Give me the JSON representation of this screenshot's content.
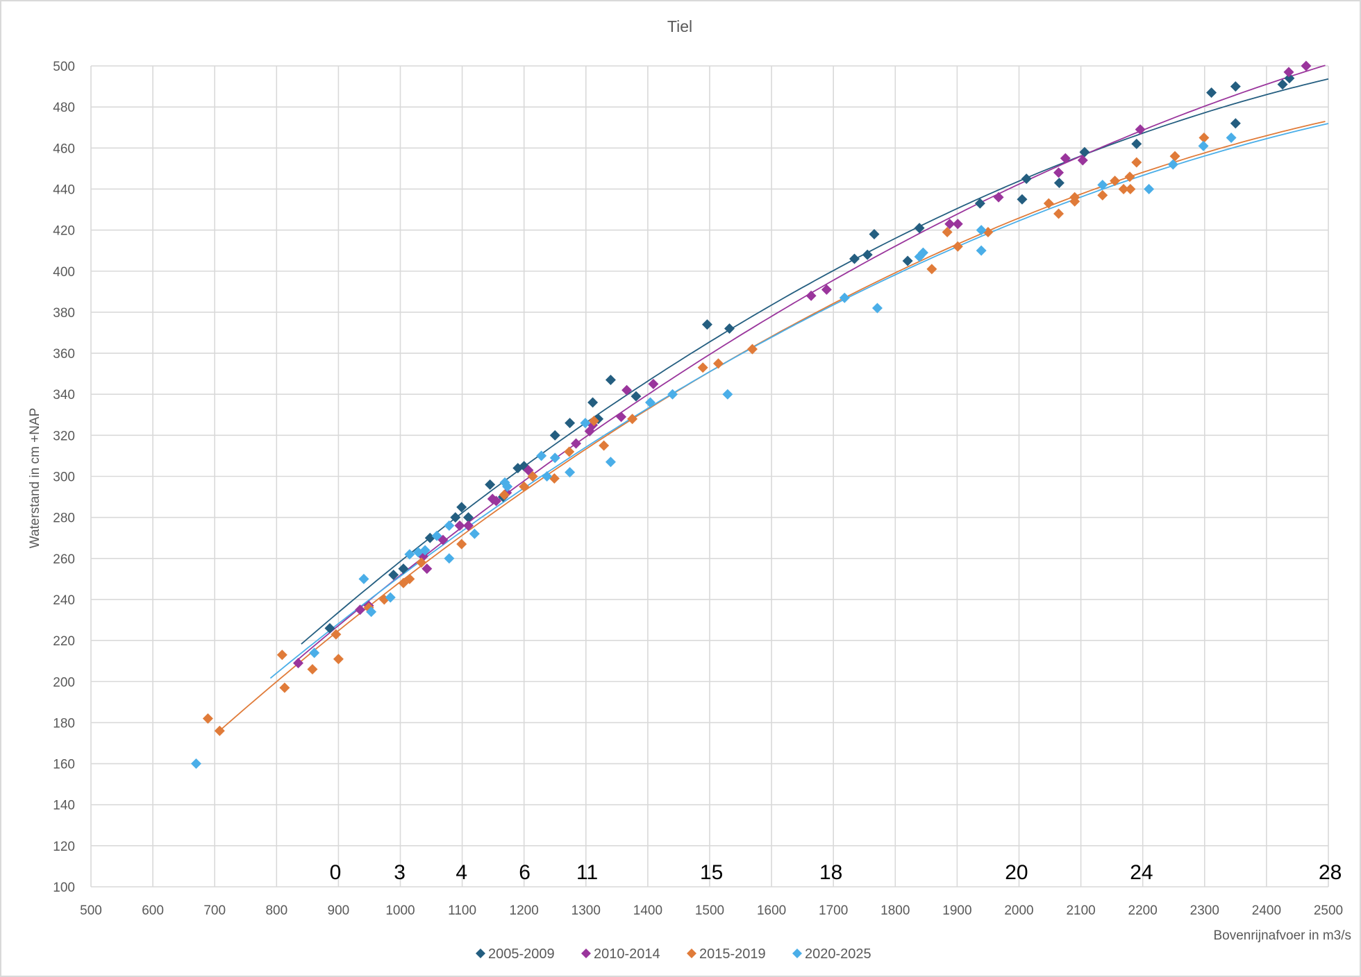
{
  "chart_data": {
    "type": "scatter",
    "title": "Tiel",
    "xlabel": "Bovenrijnafvoer in m3/s",
    "ylabel": "Waterstand in cm +NAP",
    "xlim": [
      500,
      2500
    ],
    "ylim": [
      100,
      500
    ],
    "xticks": [
      500,
      600,
      700,
      800,
      900,
      1000,
      1100,
      1200,
      1300,
      1400,
      1500,
      1600,
      1700,
      1800,
      1900,
      2000,
      2100,
      2200,
      2300,
      2400,
      2500
    ],
    "yticks": [
      100,
      120,
      140,
      160,
      180,
      200,
      220,
      240,
      260,
      280,
      300,
      320,
      340,
      360,
      380,
      400,
      420,
      440,
      460,
      480,
      500
    ],
    "grid": true,
    "legend": "bottom",
    "marker": "diamond",
    "trendline": "polynomial",
    "annotations": [
      {
        "text": "0",
        "x": 895,
        "y": 104
      },
      {
        "text": "3",
        "x": 999,
        "y": 104
      },
      {
        "text": "4",
        "x": 1099,
        "y": 104
      },
      {
        "text": "6",
        "x": 1201,
        "y": 104
      },
      {
        "text": "11",
        "x": 1302,
        "y": 104
      },
      {
        "text": "15",
        "x": 1503,
        "y": 104
      },
      {
        "text": "18",
        "x": 1696,
        "y": 104
      },
      {
        "text": "20",
        "x": 1996,
        "y": 104
      },
      {
        "text": "24",
        "x": 2198,
        "y": 104
      },
      {
        "text": "28",
        "x": 2503,
        "y": 104
      }
    ],
    "series": [
      {
        "name": "2005-2009",
        "color": "#245e80",
        "trend_range": [
          840,
          2500
        ],
        "points": [
          [
            886,
            226
          ],
          [
            989,
            252
          ],
          [
            1005,
            255
          ],
          [
            1048,
            270
          ],
          [
            1089,
            280
          ],
          [
            1099,
            285
          ],
          [
            1110,
            280
          ],
          [
            1145,
            296
          ],
          [
            1166,
            290
          ],
          [
            1190,
            304
          ],
          [
            1200,
            305
          ],
          [
            1250,
            320
          ],
          [
            1274,
            326
          ],
          [
            1311,
            336
          ],
          [
            1320,
            328
          ],
          [
            1340,
            347
          ],
          [
            1381,
            339
          ],
          [
            1496,
            374
          ],
          [
            1532,
            372
          ],
          [
            1734,
            406
          ],
          [
            1755,
            408
          ],
          [
            1766,
            418
          ],
          [
            1820,
            405
          ],
          [
            1839,
            421
          ],
          [
            1937,
            433
          ],
          [
            2005,
            435
          ],
          [
            2012,
            445
          ],
          [
            2065,
            443
          ],
          [
            2106,
            458
          ],
          [
            2190,
            462
          ],
          [
            2311,
            487
          ],
          [
            2350,
            490
          ],
          [
            2350,
            472
          ],
          [
            2426,
            491
          ],
          [
            2437,
            494
          ]
        ]
      },
      {
        "name": "2010-2014",
        "color": "#9a359c",
        "trend_range": [
          835,
          2500
        ],
        "points": [
          [
            835,
            209
          ],
          [
            935,
            235
          ],
          [
            949,
            237
          ],
          [
            1037,
            261
          ],
          [
            1043,
            255
          ],
          [
            1069,
            269
          ],
          [
            1096,
            276
          ],
          [
            1110,
            276
          ],
          [
            1149,
            289
          ],
          [
            1155,
            288
          ],
          [
            1172,
            292
          ],
          [
            1207,
            303
          ],
          [
            1284,
            316
          ],
          [
            1306,
            322
          ],
          [
            1311,
            325
          ],
          [
            1357,
            329
          ],
          [
            1366,
            342
          ],
          [
            1409,
            345
          ],
          [
            1664,
            388
          ],
          [
            1689,
            391
          ],
          [
            1888,
            423
          ],
          [
            1901,
            423
          ],
          [
            1967,
            436
          ],
          [
            2064,
            448
          ],
          [
            2075,
            455
          ],
          [
            2103,
            454
          ],
          [
            2196,
            469
          ],
          [
            2436,
            497
          ],
          [
            2464,
            500
          ]
        ]
      },
      {
        "name": "2015-2019",
        "color": "#e07b39",
        "trend_range": [
          705,
          2500
        ],
        "points": [
          [
            689,
            182
          ],
          [
            708,
            176
          ],
          [
            809,
            213
          ],
          [
            813,
            197
          ],
          [
            858,
            206
          ],
          [
            896,
            223
          ],
          [
            900,
            211
          ],
          [
            949,
            236
          ],
          [
            974,
            240
          ],
          [
            1005,
            248
          ],
          [
            1015,
            250
          ],
          [
            1034,
            258
          ],
          [
            1099,
            267
          ],
          [
            1168,
            291
          ],
          [
            1200,
            295
          ],
          [
            1214,
            300
          ],
          [
            1249,
            299
          ],
          [
            1273,
            312
          ],
          [
            1313,
            327
          ],
          [
            1329,
            315
          ],
          [
            1375,
            328
          ],
          [
            1489,
            353
          ],
          [
            1514,
            355
          ],
          [
            1569,
            362
          ],
          [
            1859,
            401
          ],
          [
            1884,
            419
          ],
          [
            1901,
            412
          ],
          [
            1950,
            419
          ],
          [
            2048,
            433
          ],
          [
            2064,
            428
          ],
          [
            2090,
            436
          ],
          [
            2090,
            434
          ],
          [
            2135,
            437
          ],
          [
            2155,
            444
          ],
          [
            2169,
            440
          ],
          [
            2179,
            446
          ],
          [
            2180,
            440
          ],
          [
            2190,
            453
          ],
          [
            2252,
            456
          ],
          [
            2299,
            465
          ]
        ]
      },
      {
        "name": "2020-2025",
        "color": "#4aaee8",
        "trend_range": [
          790,
          2500
        ],
        "points": [
          [
            670,
            160
          ],
          [
            861,
            214
          ],
          [
            941,
            250
          ],
          [
            953,
            234
          ],
          [
            984,
            241
          ],
          [
            1015,
            262
          ],
          [
            1029,
            263
          ],
          [
            1040,
            264
          ],
          [
            1059,
            271
          ],
          [
            1079,
            276
          ],
          [
            1079,
            260
          ],
          [
            1120,
            272
          ],
          [
            1169,
            297
          ],
          [
            1173,
            295
          ],
          [
            1228,
            310
          ],
          [
            1237,
            300
          ],
          [
            1250,
            309
          ],
          [
            1274,
            302
          ],
          [
            1299,
            326
          ],
          [
            1340,
            307
          ],
          [
            1404,
            336
          ],
          [
            1440,
            340
          ],
          [
            1529,
            340
          ],
          [
            1718,
            387
          ],
          [
            1771,
            382
          ],
          [
            1839,
            407
          ],
          [
            1845,
            409
          ],
          [
            1939,
            420
          ],
          [
            1939,
            410
          ],
          [
            2135,
            442
          ],
          [
            2210,
            440
          ],
          [
            2249,
            452
          ],
          [
            2298,
            461
          ],
          [
            2343,
            465
          ]
        ]
      }
    ]
  }
}
